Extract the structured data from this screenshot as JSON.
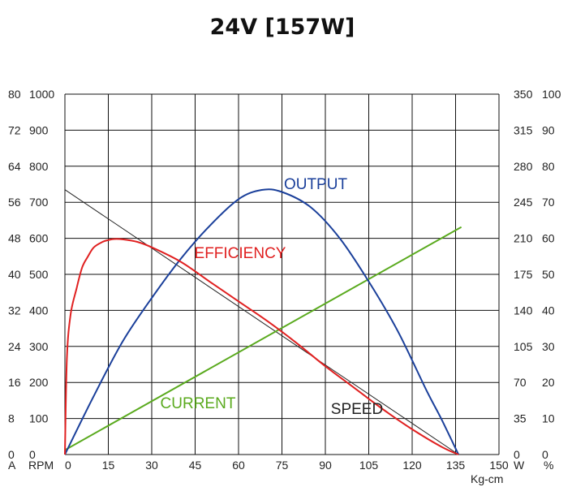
{
  "chart_data": {
    "type": "line",
    "title": "24V [157W]",
    "xlabel": "Kg-cm",
    "xlim": [
      0,
      150
    ],
    "x_ticks": [
      0,
      15,
      30,
      45,
      60,
      75,
      90,
      105,
      120,
      135,
      150
    ],
    "grid": true,
    "left_axes": [
      {
        "unit": "A",
        "ticks": [
          "0",
          "8",
          "16",
          "24",
          "32",
          "40",
          "48",
          "56",
          "64",
          "72",
          "80"
        ]
      },
      {
        "unit": "RPM",
        "ticks": [
          "0",
          "100",
          "200",
          "300",
          "400",
          "500",
          "600",
          "700",
          "800",
          "900",
          "1000"
        ]
      }
    ],
    "right_axes": [
      {
        "unit": "W",
        "ticks": [
          "0",
          "35",
          "70",
          "105",
          "140",
          "175",
          "210",
          "245",
          "280",
          "315",
          "350"
        ]
      },
      {
        "unit": "%",
        "ticks": [
          "0",
          "10",
          "20",
          "30",
          "40",
          "50",
          "60",
          "70",
          "80",
          "90",
          "100"
        ]
      }
    ],
    "series": [
      {
        "name": "SPEED",
        "axis": "RPM",
        "color": "#222222",
        "x": [
          0,
          136
        ],
        "y": [
          735,
          0
        ]
      },
      {
        "name": "CURRENT",
        "axis": "A",
        "color": "#5aaa1e",
        "x": [
          0,
          137
        ],
        "y": [
          1,
          50.5
        ]
      },
      {
        "name": "OUTPUT",
        "axis": "W",
        "color": "#1a3f9a",
        "x": [
          0,
          10,
          20,
          30,
          40,
          50,
          60,
          68,
          75,
          85,
          95,
          105,
          115,
          125,
          130,
          136
        ],
        "y": [
          0,
          57,
          110,
          152,
          190,
          222,
          248,
          257,
          255,
          240,
          210,
          168,
          120,
          62,
          35,
          0
        ]
      },
      {
        "name": "EFFICIENCY",
        "axis": "%",
        "color": "#e02020",
        "x": [
          0,
          0.7,
          2,
          4,
          6,
          8,
          10,
          13,
          15,
          17,
          20,
          25,
          30,
          40,
          50,
          60,
          70,
          80,
          90,
          100,
          110,
          120,
          130,
          136
        ],
        "y": [
          0,
          27,
          39,
          46,
          52,
          55,
          57.5,
          59,
          59.5,
          59.8,
          59.7,
          59,
          57.5,
          53.5,
          48,
          42.5,
          37,
          31,
          24.5,
          18.5,
          12.5,
          7,
          2.2,
          0
        ]
      }
    ]
  }
}
